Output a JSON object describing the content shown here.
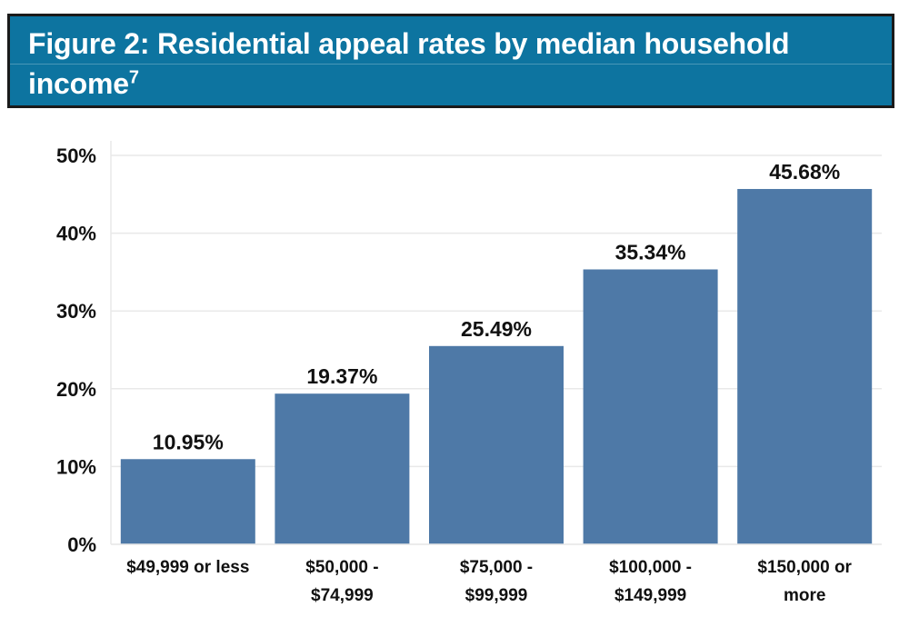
{
  "header": {
    "title": "Figure 2: Residential appeal rates by median household income",
    "superscript": "7"
  },
  "colors": {
    "header_bg": "#0d74a0",
    "bar": "#4e79a7",
    "grid": "#e9e9e9"
  },
  "chart_data": {
    "type": "bar",
    "title": "Figure 2: Residential appeal rates by median household income",
    "xlabel": "",
    "ylabel": "",
    "categories": [
      [
        "$49,999 or less"
      ],
      [
        "$50,000 -",
        "$74,999"
      ],
      [
        "$75,000 -",
        "$99,999"
      ],
      [
        "$100,000 -",
        "$149,999"
      ],
      [
        "$150,000 or",
        "more"
      ]
    ],
    "values": [
      10.95,
      19.37,
      25.49,
      35.34,
      45.68
    ],
    "value_labels": [
      "10.95%",
      "19.37%",
      "25.49%",
      "35.34%",
      "45.68%"
    ],
    "yticks": [
      0,
      10,
      20,
      30,
      40,
      50
    ],
    "ytick_labels": [
      "0%",
      "10%",
      "20%",
      "30%",
      "40%",
      "50%"
    ],
    "ylim": [
      0,
      50
    ],
    "grid": true,
    "legend": "none"
  }
}
